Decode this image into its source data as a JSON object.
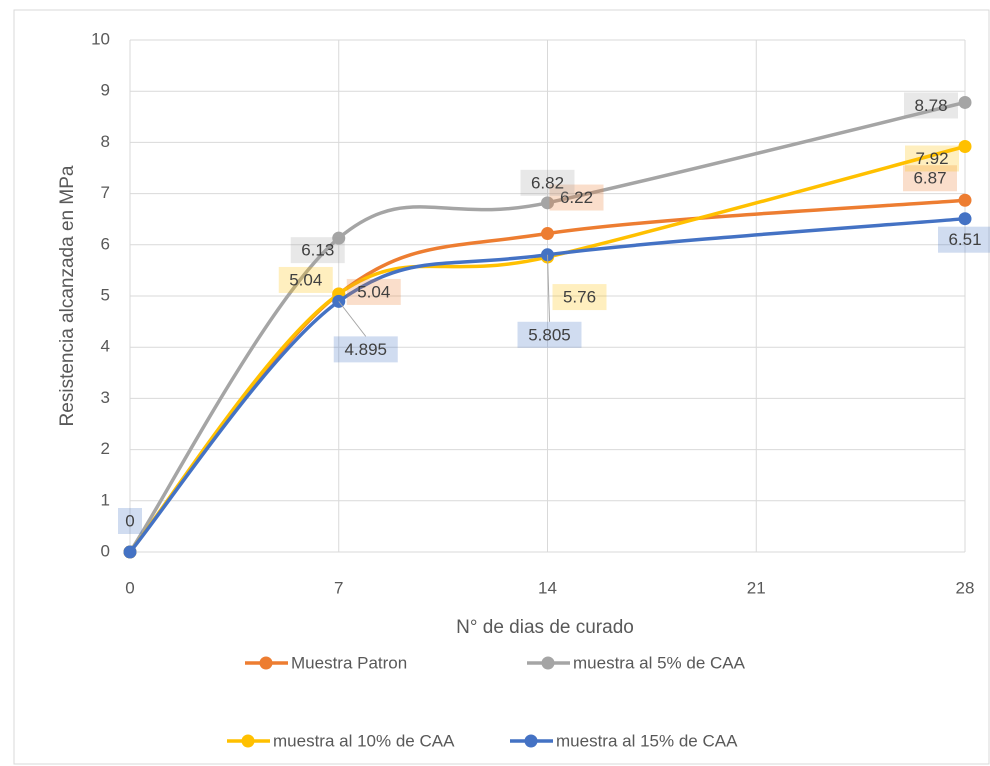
{
  "chart_data": {
    "type": "line",
    "x_label": "N° de dias de curado",
    "y_label": "Resistencia alcanzada en MPa",
    "x": [
      0,
      7,
      14,
      28
    ],
    "xlim": [
      0,
      28
    ],
    "xticks": [
      0,
      7,
      14,
      21,
      28
    ],
    "ylim": [
      0,
      10
    ],
    "yticks": [
      0,
      1,
      2,
      3,
      4,
      5,
      6,
      7,
      8,
      9,
      10
    ],
    "grid": true,
    "smooth": true,
    "legend": "bottom",
    "series": [
      {
        "name": "Muestra Patron",
        "color": "#ED7D31",
        "values": [
          0,
          5.04,
          6.22,
          6.87
        ],
        "value_labels": [
          null,
          "5.04",
          "6.22",
          "6.87"
        ]
      },
      {
        "name": "muestra al 5% de CAA",
        "color": "#A5A5A5",
        "values": [
          0,
          6.13,
          6.82,
          8.78
        ],
        "value_labels": [
          null,
          "6.13",
          "6.82",
          "8.78"
        ]
      },
      {
        "name": "muestra al 10% de CAA",
        "color": "#FFC000",
        "values": [
          0,
          5.04,
          5.76,
          7.92
        ],
        "value_labels": [
          null,
          "5.04",
          "5.76",
          "7.92"
        ]
      },
      {
        "name": "muestra al 15% de CAA",
        "color": "#4472C4",
        "values": [
          0,
          4.895,
          5.805,
          6.51
        ],
        "value_labels": [
          "0",
          "4.895",
          "5.805",
          "6.51"
        ]
      }
    ]
  }
}
